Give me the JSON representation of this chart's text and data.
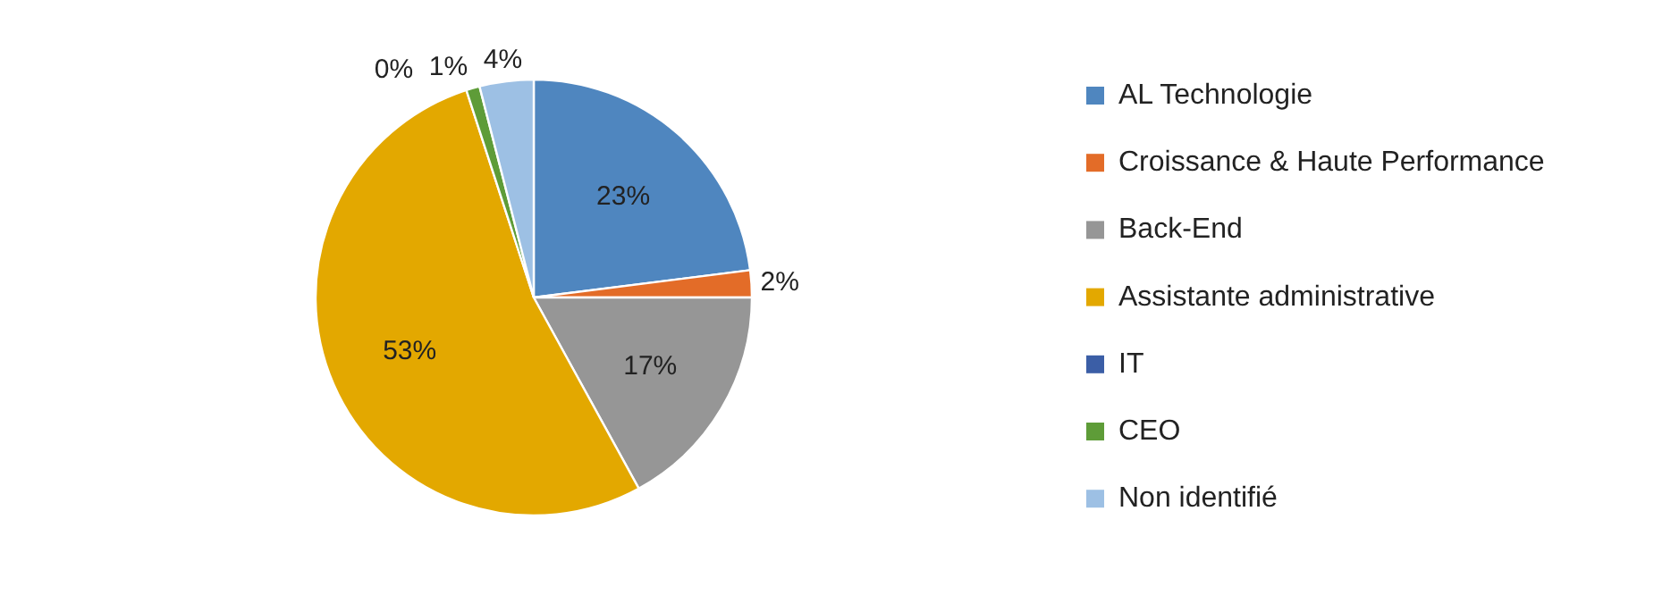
{
  "chart_data": {
    "type": "pie",
    "categories": [
      "AL Technologie",
      "Croissance & Haute Performance",
      "Back-End",
      "Assistante administrative",
      "IT",
      "CEO",
      "Non identifié"
    ],
    "values": [
      23,
      2,
      17,
      53,
      0,
      1,
      4
    ],
    "colors": [
      "#4f86bf",
      "#e36c28",
      "#969696",
      "#e3a800",
      "#3b5ea6",
      "#5e9c38",
      "#9dc0e4"
    ],
    "value_labels": [
      "23%",
      "2%",
      "17%",
      "53%",
      "0%",
      "1%",
      "4%"
    ],
    "legend": "right"
  }
}
